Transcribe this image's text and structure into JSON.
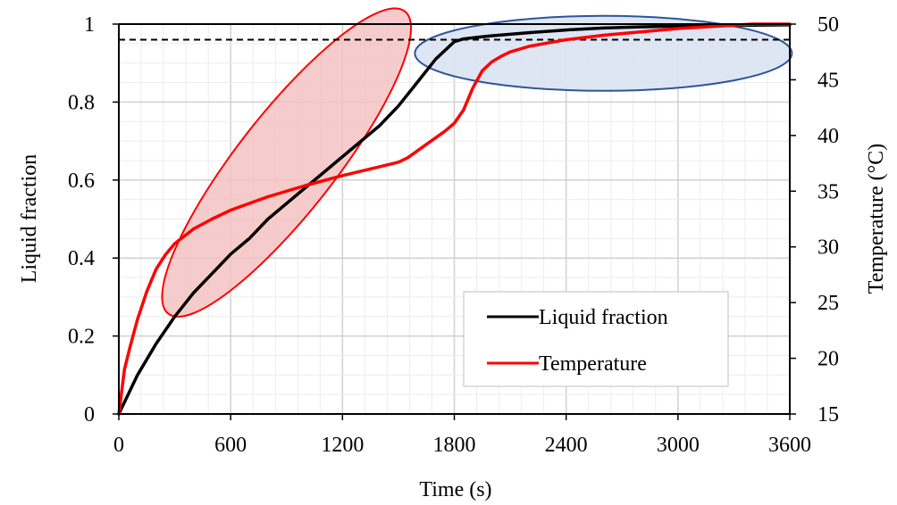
{
  "chart_data": {
    "type": "line",
    "xlabel": "Time (s)",
    "ylabel_left": "Liquid fraction",
    "ylabel_right": "Temperature (°C)",
    "x_range": [
      0,
      3600
    ],
    "x_ticks": [
      0,
      600,
      1200,
      1800,
      2400,
      3000,
      3600
    ],
    "y_left_range": [
      0,
      1
    ],
    "y_left_ticks": [
      0,
      0.2,
      0.4,
      0.6,
      0.8,
      1
    ],
    "y_left_tick_labels": [
      "0",
      "0.2",
      "0.4",
      "0.6",
      "0.8",
      "1"
    ],
    "y_right_range": [
      15,
      50
    ],
    "y_right_ticks": [
      15,
      20,
      25,
      30,
      35,
      40,
      45,
      50
    ],
    "grid": true,
    "legend_position": "bottom-right",
    "reference_line": {
      "axis": "left",
      "y": 0.96,
      "style": "dashed",
      "color": "#000000"
    },
    "series": [
      {
        "name": "Liquid fraction",
        "axis": "left",
        "color": "#000000",
        "x": [
          0,
          100,
          200,
          300,
          400,
          500,
          600,
          700,
          800,
          900,
          1000,
          1100,
          1200,
          1300,
          1400,
          1500,
          1600,
          1700,
          1800,
          1850,
          1900,
          2000,
          2200,
          2400,
          2600,
          2800,
          3000,
          3200,
          3400,
          3600
        ],
        "values": [
          0,
          0.1,
          0.18,
          0.25,
          0.31,
          0.36,
          0.41,
          0.45,
          0.5,
          0.54,
          0.58,
          0.62,
          0.66,
          0.7,
          0.74,
          0.79,
          0.85,
          0.91,
          0.955,
          0.962,
          0.965,
          0.97,
          0.978,
          0.985,
          0.99,
          0.993,
          0.995,
          0.996,
          0.997,
          0.998
        ]
      },
      {
        "name": "Temperature",
        "axis": "right",
        "color": "#ff0000",
        "x": [
          0,
          30,
          60,
          100,
          150,
          200,
          250,
          300,
          400,
          500,
          600,
          800,
          1000,
          1200,
          1400,
          1500,
          1550,
          1600,
          1650,
          1700,
          1750,
          1800,
          1850,
          1900,
          1950,
          2000,
          2050,
          2100,
          2200,
          2300,
          2400,
          2600,
          2800,
          3000,
          3200,
          3400,
          3600
        ],
        "values": [
          15,
          19,
          21,
          23.5,
          26,
          28,
          29.3,
          30.3,
          31.6,
          32.5,
          33.3,
          34.5,
          35.5,
          36.4,
          37.2,
          37.6,
          38,
          38.6,
          39.2,
          39.8,
          40.4,
          41.1,
          42.3,
          44.3,
          45.8,
          46.6,
          47.1,
          47.5,
          48,
          48.3,
          48.6,
          49,
          49.3,
          49.6,
          49.8,
          50,
          50
        ]
      }
    ]
  },
  "annotations": {
    "red_ellipse": {
      "cx": 900,
      "cy": 0.645,
      "fill": "#f4c2c2",
      "stroke": "#ff0000"
    },
    "blue_ellipse": {
      "cx": 2600,
      "cy": 0.925,
      "fill": "#dae3f3",
      "stroke": "#2f5597"
    }
  }
}
